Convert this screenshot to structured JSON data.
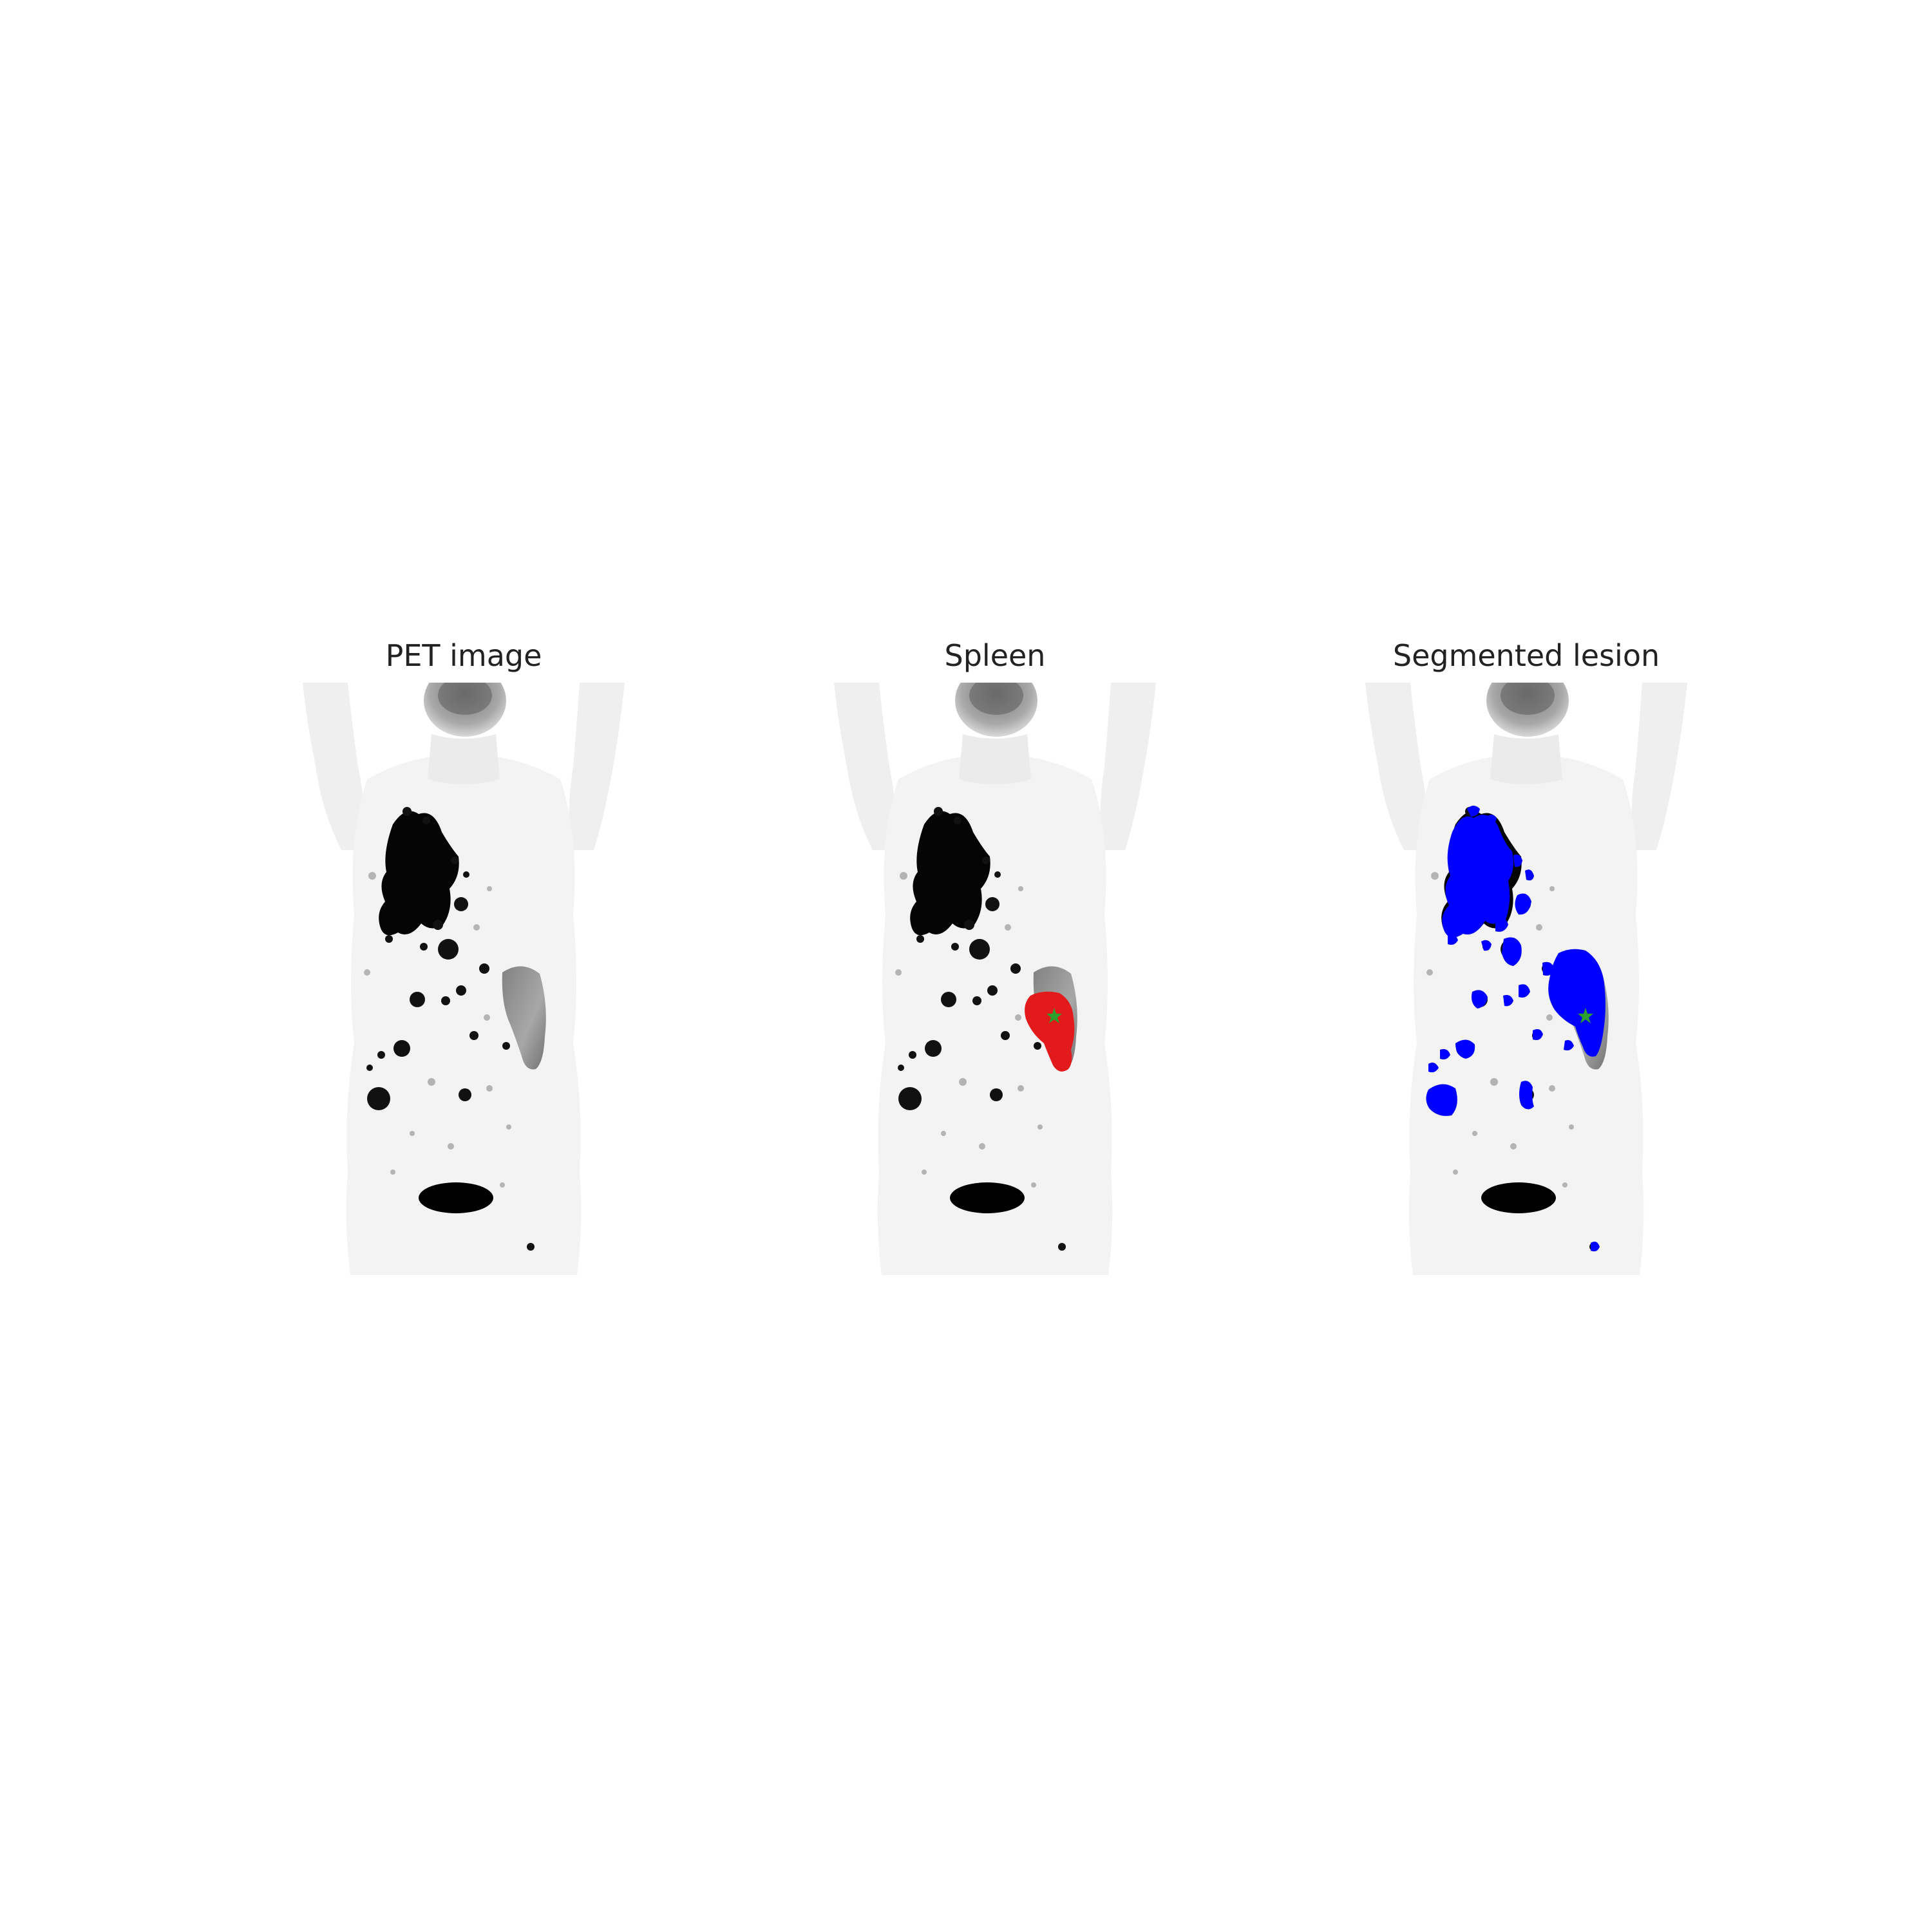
{
  "panels": [
    {
      "title": "PET image",
      "overlay": "none"
    },
    {
      "title": "Spleen",
      "overlay": "spleen-mask"
    },
    {
      "title": "Segmented lesion",
      "overlay": "lesion-mask"
    }
  ],
  "colors": {
    "background": "#ffffff",
    "body": "#f2f2f2",
    "uptake": "#000000",
    "spleen_mask": "#e31a1c",
    "lesion_mask": "#0000ff",
    "seed_marker": "#2ca02c"
  }
}
